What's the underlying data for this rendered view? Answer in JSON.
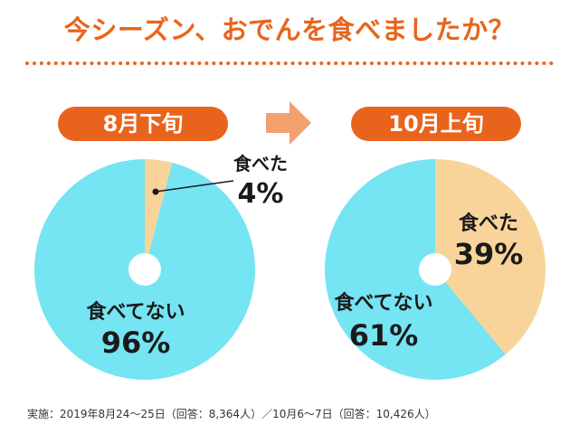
{
  "title": "今シーズン、おでんを食べましたか？",
  "colors": {
    "accent": "#e8641c",
    "arrow": "#f2a06e",
    "ate": "#f9d49a",
    "not_ate": "#75e4f3",
    "label_text": "#1a1a1a",
    "leader": "#1a1a1a"
  },
  "arrow_icon": "right-arrow-icon",
  "footnote": "実施：2019年8月24～25日（回答：8,364人）／10月6～7日（回答：10,426人）",
  "chart_data": [
    {
      "type": "pie",
      "title": "8月下旬",
      "legend": "none",
      "slices": [
        {
          "label": "食べた",
          "value": 4,
          "display": "4%"
        },
        {
          "label": "食べてない",
          "value": 96,
          "display": "96%"
        }
      ]
    },
    {
      "type": "pie",
      "title": "10月上旬",
      "legend": "none",
      "slices": [
        {
          "label": "食べた",
          "value": 39,
          "display": "39%"
        },
        {
          "label": "食べてない",
          "value": 61,
          "display": "61%"
        }
      ]
    }
  ]
}
